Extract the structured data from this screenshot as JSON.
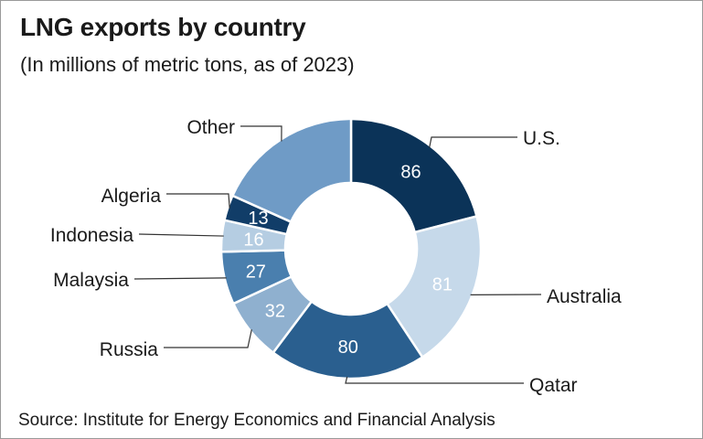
{
  "chart_data": {
    "type": "pie",
    "style": "donut",
    "title": "LNG exports by country",
    "subtitle": "(In millions of metric tons, as of 2023)",
    "source": "Source: Institute for Energy Economics and Financial Analysis",
    "slices": [
      {
        "label": "U.S.",
        "value": 86,
        "value_label": "86",
        "color": "#0b3358",
        "text_color": "#ffffff"
      },
      {
        "label": "Australia",
        "value": 81,
        "value_label": "81",
        "color": "#c6d9ea",
        "text_color": "#ffffff"
      },
      {
        "label": "Qatar",
        "value": 80,
        "value_label": "80",
        "color": "#2a5f8f",
        "text_color": "#ffffff"
      },
      {
        "label": "Russia",
        "value": 32,
        "value_label": "32",
        "color": "#8fb0cf",
        "text_color": "#ffffff"
      },
      {
        "label": "Malaysia",
        "value": 27,
        "value_label": "27",
        "color": "#4a7fae",
        "text_color": "#ffffff"
      },
      {
        "label": "Indonesia",
        "value": 16,
        "value_label": "16",
        "color": "#b5cde2",
        "text_color": "#ffffff"
      },
      {
        "label": "Algeria",
        "value": 13,
        "value_label": "13",
        "color": "#113d68",
        "text_color": "#ffffff"
      },
      {
        "label": "Other",
        "value": 75,
        "value_label": "",
        "color": "#6f9bc6",
        "text_color": "#ffffff"
      }
    ]
  }
}
